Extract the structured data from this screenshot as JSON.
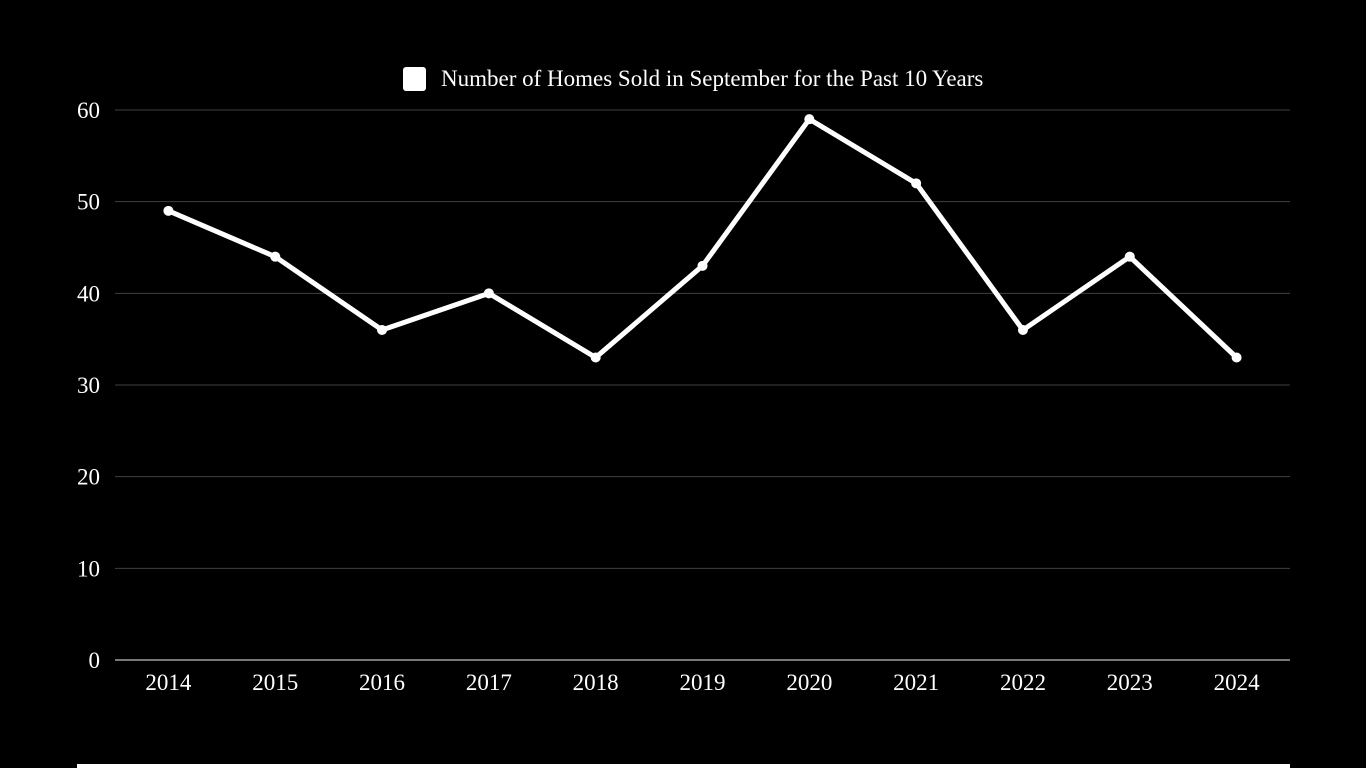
{
  "page": {
    "background": "#000000"
  },
  "chart_data": {
    "type": "line",
    "title": "Number of Homes Sold in September for the Past 10 Years",
    "legend": [
      "Number of Homes Sold in September for the Past 10 Years"
    ],
    "legend_position": "top-center",
    "categories": [
      "2014",
      "2015",
      "2016",
      "2017",
      "2018",
      "2019",
      "2020",
      "2021",
      "2022",
      "2023",
      "2024"
    ],
    "series": [
      {
        "name": "Number of Homes Sold in September for the Past 10 Years",
        "values": [
          49,
          44,
          36,
          40,
          33,
          43,
          59,
          52,
          36,
          44,
          33
        ]
      }
    ],
    "xlabel": "",
    "ylabel": "",
    "ylim": [
      0,
      60
    ],
    "yticks": [
      0,
      10,
      20,
      30,
      40,
      50,
      60
    ],
    "grid": true,
    "colors": {
      "background": "#000000",
      "line": "#ffffff",
      "marker": "#ffffff",
      "gridline": "#404040",
      "axis_line": "#777777",
      "tick_label": "#ffffff",
      "legend_swatch": "#ffffff",
      "legend_text": "#ffffff"
    }
  }
}
